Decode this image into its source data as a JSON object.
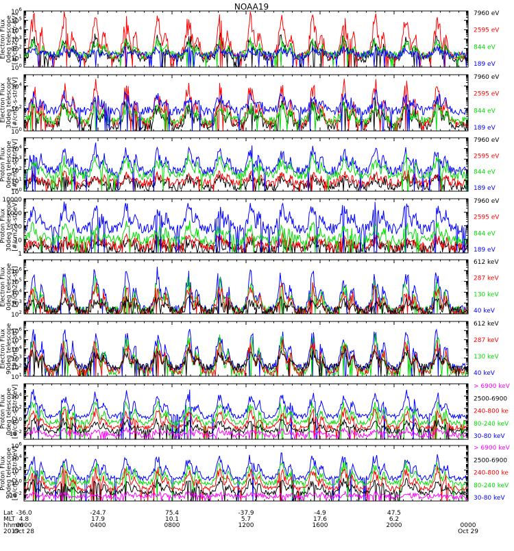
{
  "title": "NOAA19",
  "colors": {
    "black": "#000000",
    "red": "#ff0000",
    "green": "#00dd00",
    "blue": "#0000ff",
    "magenta": "#ff00ff"
  },
  "chart_data": [
    {
      "type": "line",
      "ylabel": [
        "TED",
        "Electron Flux",
        "0deg telescope",
        "[#/cm2-s-str-eV]"
      ],
      "scale": "log",
      "ylim": [
        1,
        1000000
      ],
      "yticks": [
        {
          "label": "10",
          "sup": "0",
          "value": 1
        },
        {
          "label": "10",
          "sup": "1",
          "value": 10
        },
        {
          "label": "10",
          "sup": "2",
          "value": 100
        },
        {
          "label": "10",
          "sup": "3",
          "value": 1000
        },
        {
          "label": "10",
          "sup": "4",
          "value": 10000
        },
        {
          "label": "10",
          "sup": "5",
          "value": 100000
        },
        {
          "label": "10",
          "sup": "6",
          "value": 1000000
        }
      ],
      "legend": [
        {
          "name": "7960 eV",
          "color": "#000000"
        },
        {
          "name": "2595 eV",
          "color": "#ff0000"
        },
        {
          "name": "844 eV",
          "color": "#00dd00"
        },
        {
          "name": "189 eV",
          "color": "#0000ff"
        }
      ],
      "series": [
        {
          "name": "7960 eV",
          "color": "#000000",
          "base": 8,
          "peak": 3000
        },
        {
          "name": "2595 eV",
          "color": "#ff0000",
          "base": 15,
          "peak": 800000
        },
        {
          "name": "844 eV",
          "color": "#00dd00",
          "base": 20,
          "peak": 1000
        },
        {
          "name": "189 eV",
          "color": "#0000ff",
          "base": 20,
          "peak": 100
        }
      ]
    },
    {
      "type": "line",
      "ylabel": [
        "TED",
        "Electron Flux",
        "30deg telescope",
        "[#/cm2-s-str-eV]"
      ],
      "scale": "log",
      "ylim": [
        1,
        100000
      ],
      "yticks": [
        {
          "label": "10",
          "sup": "0",
          "value": 1
        },
        {
          "label": "10",
          "sup": "2",
          "value": 100
        },
        {
          "label": "10",
          "sup": "4",
          "value": 10000
        }
      ],
      "legend": [
        {
          "name": "7960 eV",
          "color": "#000000"
        },
        {
          "name": "2595 eV",
          "color": "#ff0000"
        },
        {
          "name": "844 eV",
          "color": "#00dd00"
        },
        {
          "name": "189 eV",
          "color": "#0000ff"
        }
      ],
      "series": [
        {
          "name": "7960 eV",
          "color": "#000000",
          "base": 3,
          "peak": 600
        },
        {
          "name": "2595 eV",
          "color": "#ff0000",
          "base": 5,
          "peak": 40000
        },
        {
          "name": "844 eV",
          "color": "#00dd00",
          "base": 8,
          "peak": 300
        },
        {
          "name": "189 eV",
          "color": "#0000ff",
          "base": 60,
          "peak": 3000
        }
      ]
    },
    {
      "type": "line",
      "ylabel": [
        "TED",
        "Proton Flux",
        "0deg telescope",
        "[#/cm2-s-str-eV]"
      ],
      "scale": "log",
      "ylim": [
        1,
        100000
      ],
      "yticks": [
        {
          "label": "10",
          "sup": "0",
          "value": 1
        },
        {
          "label": "10",
          "sup": "1",
          "value": 10
        },
        {
          "label": "10",
          "sup": "2",
          "value": 100
        },
        {
          "label": "10",
          "sup": "3",
          "value": 1000
        },
        {
          "label": "10",
          "sup": "4",
          "value": 10000
        }
      ],
      "legend": [
        {
          "name": "7960 eV",
          "color": "#000000"
        },
        {
          "name": "2595 eV",
          "color": "#ff0000"
        },
        {
          "name": "844 eV",
          "color": "#00dd00"
        },
        {
          "name": "189 eV",
          "color": "#0000ff"
        }
      ],
      "series": [
        {
          "name": "7960 eV",
          "color": "#000000",
          "base": 3,
          "peak": 30
        },
        {
          "name": "2595 eV",
          "color": "#ff0000",
          "base": 6,
          "peak": 60
        },
        {
          "name": "189 eV",
          "color": "#0000ff",
          "base": 80,
          "peak": 20000
        },
        {
          "name": "844 eV",
          "color": "#00dd00",
          "base": 30,
          "peak": 2000
        }
      ]
    },
    {
      "type": "line",
      "ylabel": [
        "TED",
        "Proton Flux",
        "30deg telescope",
        "[#/cm2-s-str-eV]"
      ],
      "scale": "log",
      "ylim": [
        1,
        10000
      ],
      "yticks": [
        {
          "label": "1",
          "value": 1
        },
        {
          "label": "10",
          "value": 10
        },
        {
          "label": "100",
          "value": 100
        },
        {
          "label": "1000",
          "value": 1000
        },
        {
          "label": "10000",
          "value": 10000
        }
      ],
      "legend": [
        {
          "name": "7960 eV",
          "color": "#000000"
        },
        {
          "name": "2595 eV",
          "color": "#ff0000"
        },
        {
          "name": "844 eV",
          "color": "#00dd00"
        },
        {
          "name": "189 eV",
          "color": "#0000ff"
        }
      ],
      "series": [
        {
          "name": "7960 eV",
          "color": "#000000",
          "base": 2,
          "peak": 10
        },
        {
          "name": "2595 eV",
          "color": "#ff0000",
          "base": 3,
          "peak": 20
        },
        {
          "name": "189 eV",
          "color": "#0000ff",
          "base": 60,
          "peak": 6000
        },
        {
          "name": "844 eV",
          "color": "#00dd00",
          "base": 8,
          "peak": 150
        }
      ]
    },
    {
      "type": "line",
      "ylabel": [
        "MEPED",
        "Electron Flux",
        "0deg telescope",
        "[#/cm2-s-str]"
      ],
      "scale": "log",
      "ylim": [
        100,
        10000000
      ],
      "yticks": [
        {
          "label": "10",
          "sup": "2",
          "value": 100
        },
        {
          "label": "10",
          "sup": "3",
          "value": 1000
        },
        {
          "label": "10",
          "sup": "4",
          "value": 10000
        },
        {
          "label": "10",
          "sup": "5",
          "value": 100000
        },
        {
          "label": "10",
          "sup": "6",
          "value": 1000000
        }
      ],
      "legend": [
        {
          "name": "612 keV",
          "color": "#000000"
        },
        {
          "name": "287 keV",
          "color": "#ff0000"
        },
        {
          "name": "130 keV",
          "color": "#00dd00"
        },
        {
          "name": "40 keV",
          "color": "#0000ff"
        }
      ],
      "series": [
        {
          "name": "40 keV",
          "color": "#0000ff",
          "base": 250,
          "peak": 2000000
        },
        {
          "name": "130 keV",
          "color": "#00dd00",
          "base": 200,
          "peak": 200000
        },
        {
          "name": "287 keV",
          "color": "#ff0000",
          "base": 160,
          "peak": 60000
        },
        {
          "name": "612 keV",
          "color": "#000000",
          "base": 200,
          "peak": 3000
        }
      ]
    },
    {
      "type": "line",
      "ylabel": [
        "MEPED",
        "Electron Flux",
        "90deg telescope",
        "[#/cm2-s-str]"
      ],
      "scale": "log",
      "ylim": [
        10,
        10000000
      ],
      "yticks": [
        {
          "label": "10",
          "sup": "1",
          "value": 10
        },
        {
          "label": "10",
          "sup": "2",
          "value": 100
        },
        {
          "label": "10",
          "sup": "3",
          "value": 1000
        },
        {
          "label": "10",
          "sup": "4",
          "value": 10000
        },
        {
          "label": "10",
          "sup": "5",
          "value": 100000
        },
        {
          "label": "10",
          "sup": "6",
          "value": 1000000
        }
      ],
      "legend": [
        {
          "name": "612 keV",
          "color": "#000000"
        },
        {
          "name": "287 keV",
          "color": "#ff0000"
        },
        {
          "name": "130 keV",
          "color": "#00dd00"
        },
        {
          "name": "40 keV",
          "color": "#0000ff"
        }
      ],
      "series": [
        {
          "name": "40 keV",
          "color": "#0000ff",
          "base": 100,
          "peak": 3000000
        },
        {
          "name": "130 keV",
          "color": "#00dd00",
          "base": 30,
          "peak": 300000
        },
        {
          "name": "287 keV",
          "color": "#ff0000",
          "base": 40,
          "peak": 100000
        },
        {
          "name": "612 keV",
          "color": "#000000",
          "base": 100,
          "peak": 10000
        }
      ]
    },
    {
      "type": "line",
      "ylabel": [
        "MEPED",
        "Proton Flux",
        "0deg telescope",
        "[#/cm2-s-str-keV]"
      ],
      "scale": "log",
      "ylim": [
        0.001,
        1000000
      ],
      "yticks": [
        {
          "label": "10",
          "sup": "-2",
          "value": 0.01
        },
        {
          "label": "10",
          "sup": "0",
          "value": 1
        },
        {
          "label": "10",
          "sup": "2",
          "value": 100
        },
        {
          "label": "10",
          "sup": "4",
          "value": 10000
        }
      ],
      "legend": [
        {
          "name": "> 6900 keV",
          "color": "#ff00ff"
        },
        {
          "name": "2500-6900",
          "color": "#000000"
        },
        {
          "name": "240-800 ke",
          "color": "#ff0000"
        },
        {
          "name": "80-240 keV",
          "color": "#00dd00"
        },
        {
          "name": "30-80 keV",
          "color": "#0000ff"
        }
      ],
      "series": [
        {
          "name": "30-80 keV",
          "color": "#0000ff",
          "base": 5,
          "peak": 100000
        },
        {
          "name": "80-240 keV",
          "color": "#00dd00",
          "base": 0.5,
          "peak": 2000
        },
        {
          "name": "240-800 ke",
          "color": "#ff0000",
          "base": 0.08,
          "peak": 100
        },
        {
          "name": "2500-6900",
          "color": "#000000",
          "base": 0.02,
          "peak": 2
        },
        {
          "name": "> 6900 keV",
          "color": "#ff00ff",
          "base": 0.005,
          "peak": 0.05
        }
      ]
    },
    {
      "type": "line",
      "ylabel": [
        "MEPED",
        "Proton Flux",
        "90deg telescope",
        "[#/cm2-s-str-keV]"
      ],
      "scale": "log",
      "ylim": [
        0.001,
        1000000
      ],
      "yticks": [
        {
          "label": "10",
          "sup": "-2",
          "value": 0.01
        },
        {
          "label": "10",
          "sup": "0",
          "value": 1
        },
        {
          "label": "10",
          "sup": "2",
          "value": 100
        },
        {
          "label": "10",
          "sup": "4",
          "value": 10000
        },
        {
          "label": "10",
          "sup": "6",
          "value": 1000000
        }
      ],
      "legend": [
        {
          "name": "> 6900 keV",
          "color": "#ff00ff"
        },
        {
          "name": "2500-6900",
          "color": "#000000"
        },
        {
          "name": "240-800 ke",
          "color": "#ff0000"
        },
        {
          "name": "80-240 keV",
          "color": "#00dd00"
        },
        {
          "name": "30-80 keV",
          "color": "#0000ff"
        }
      ],
      "series": [
        {
          "name": "30-80 keV",
          "color": "#0000ff",
          "base": 5,
          "peak": 50000
        },
        {
          "name": "80-240 keV",
          "color": "#00dd00",
          "base": 0.8,
          "peak": 3000
        },
        {
          "name": "240-800 ke",
          "color": "#ff0000",
          "base": 0.1,
          "peak": 300
        },
        {
          "name": "2500-6900",
          "color": "#000000",
          "base": 0.02,
          "peak": 5
        },
        {
          "name": "> 6900 keV",
          "color": "#ff00ff",
          "base": 0.005,
          "peak": 0.02
        }
      ]
    }
  ],
  "x_axis": {
    "row_labels": [
      "Lat",
      "MLT",
      "hhmm",
      "2019"
    ],
    "ticks": [
      {
        "value": 0,
        "lat": "-36.0",
        "mlt": "4.8",
        "hhmm": "0000",
        "date": "Oct 28"
      },
      {
        "value": 4,
        "lat": "-24.7",
        "mlt": "17.9",
        "hhmm": "0400",
        "date": ""
      },
      {
        "value": 8,
        "lat": "75.4",
        "mlt": "10.1",
        "hhmm": "0800",
        "date": ""
      },
      {
        "value": 12,
        "lat": "-37.9",
        "mlt": "5.7",
        "hhmm": "1200",
        "date": ""
      },
      {
        "value": 16,
        "lat": "-4.9",
        "mlt": "17.6",
        "hhmm": "1600",
        "date": ""
      },
      {
        "value": 20,
        "lat": "47.5",
        "mlt": "6.2",
        "hhmm": "2000",
        "date": ""
      },
      {
        "value": 24,
        "lat": "",
        "mlt": "",
        "hhmm": "0000",
        "date": "Oct 29"
      }
    ]
  }
}
